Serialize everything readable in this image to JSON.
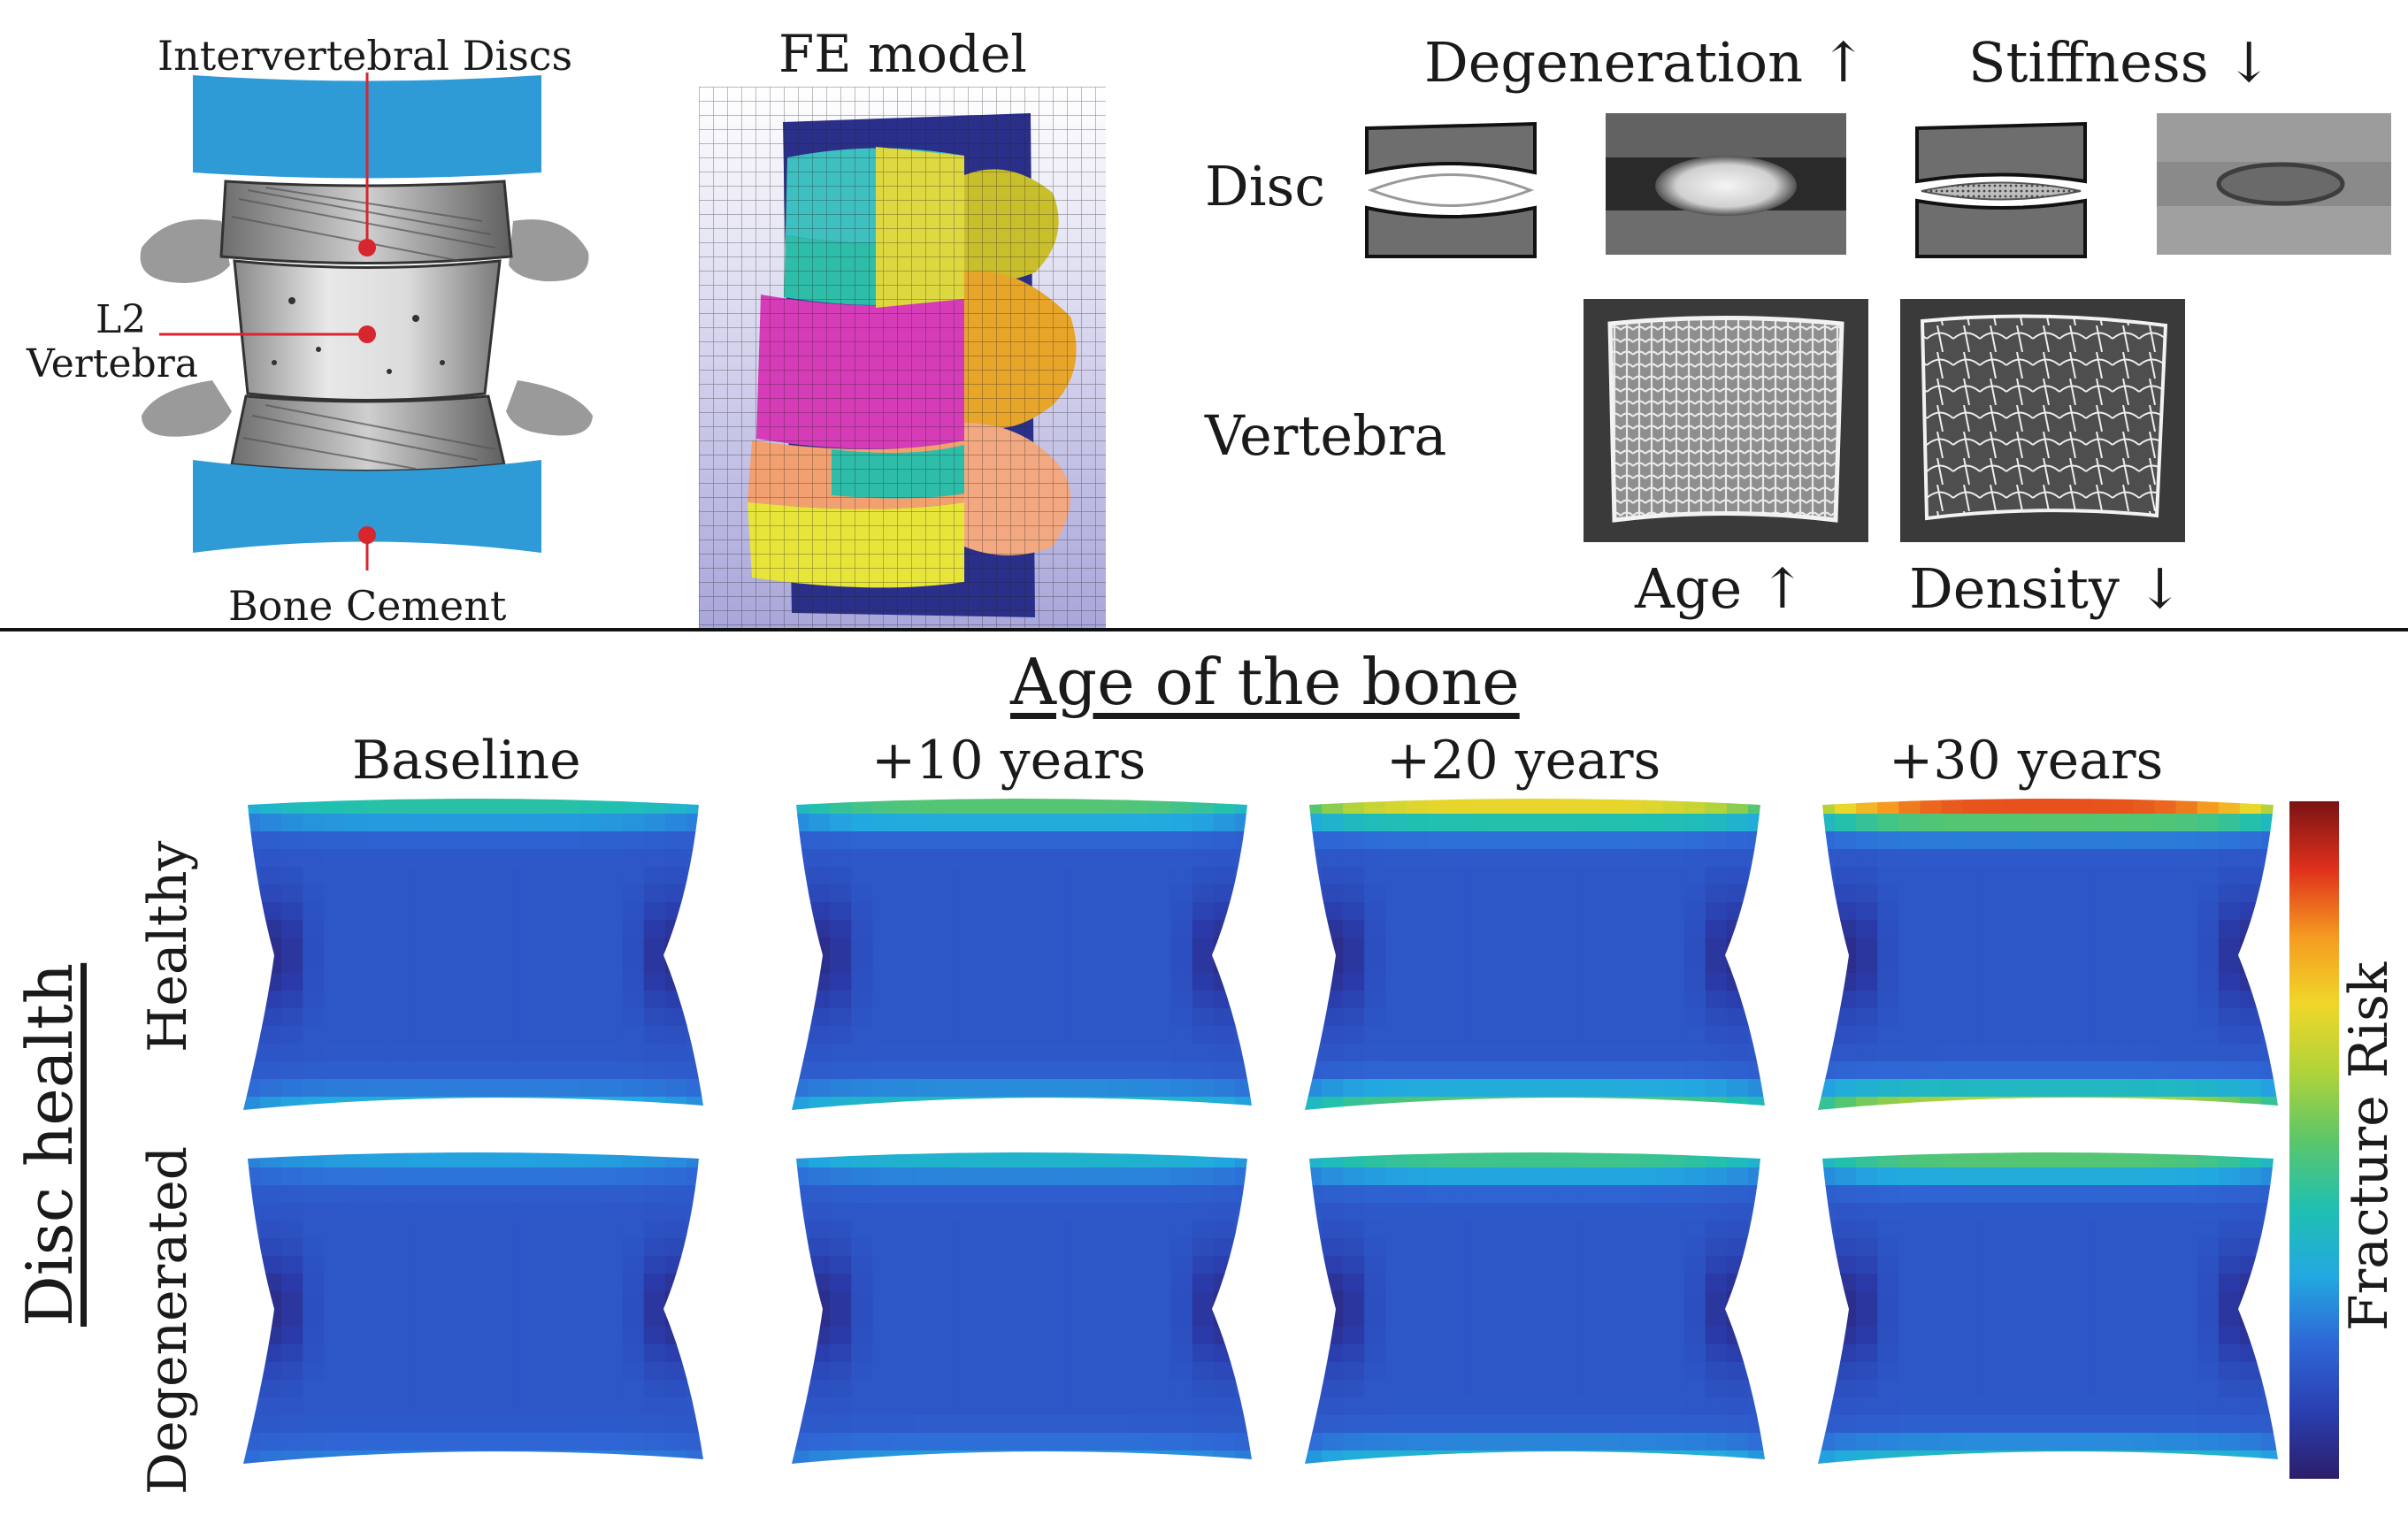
{
  "anatomy": {
    "label_discs": "Intervertebral Discs",
    "label_vertebra_line1": "L2",
    "label_vertebra_line2": "Vertebra",
    "label_cement": "Bone Cement"
  },
  "fe_model": {
    "title": "FE model"
  },
  "material": {
    "header_degeneration": "Degeneration",
    "header_stiffness": "Stiffness",
    "row_disc": "Disc",
    "row_vertebra": "Vertebra",
    "footer_age": "Age",
    "footer_density": "Density"
  },
  "results": {
    "title": "Age of the bone",
    "row_group_label": "Disc health",
    "columns": [
      "Baseline",
      "+10 years",
      "+20 years",
      "+30 years"
    ],
    "rows": [
      "Healthy",
      "Degenerated"
    ],
    "colorbar_label": "Fracture Risk",
    "peak_risk": [
      [
        0.28,
        0.36,
        0.58,
        0.78
      ],
      [
        0.14,
        0.2,
        0.32,
        0.36
      ]
    ],
    "colormap": [
      "#2c1e6b",
      "#2a3fb0",
      "#2f67d6",
      "#22a9e0",
      "#20c0b0",
      "#5cc66a",
      "#b0d33a",
      "#f0d72a",
      "#f59b20",
      "#e0301c",
      "#7a1313"
    ]
  }
}
